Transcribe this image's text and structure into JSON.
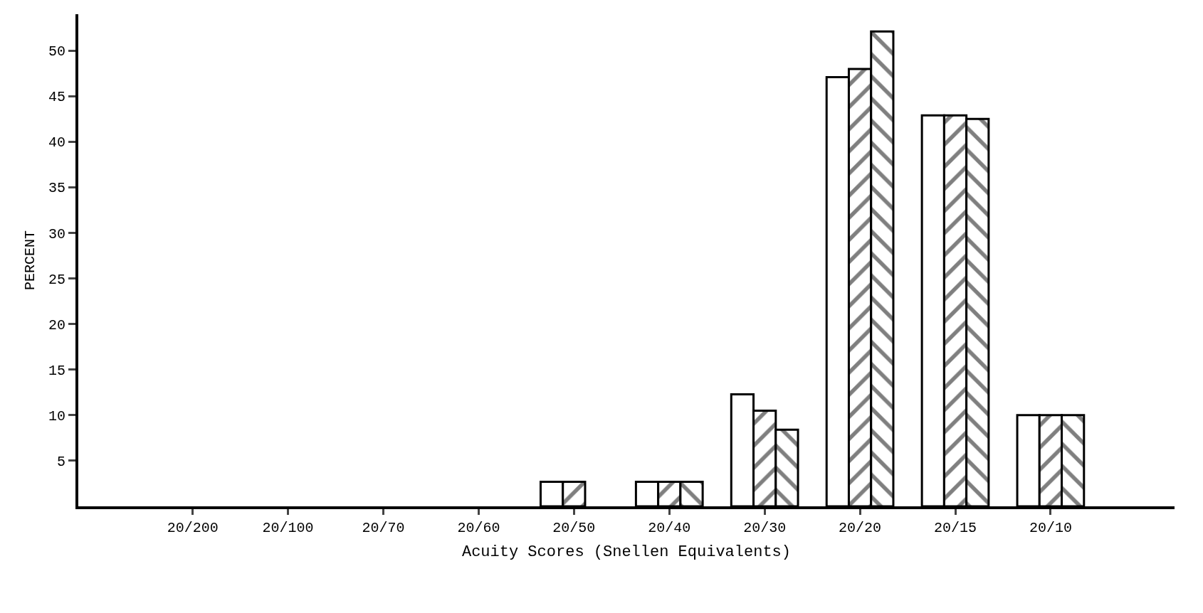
{
  "chart_data": {
    "type": "bar",
    "xlabel": "Acuity Scores (Snellen Equivalents)",
    "ylabel": "PERCENT",
    "categories": [
      "20/200",
      "20/100",
      "20/70",
      "20/60",
      "20/50",
      "20/40",
      "20/30",
      "20/20",
      "20/15",
      "20/10"
    ],
    "series": [
      {
        "color": "#ffffff",
        "values": [
          null,
          null,
          null,
          null,
          2.7,
          2.7,
          12.3,
          47.1,
          42.9,
          10
        ]
      },
      {
        "color": "#000000",
        "values": [
          null,
          null,
          null,
          null,
          2.7,
          2.7,
          10.5,
          48,
          42.9,
          10
        ]
      },
      {
        "color": "#000000",
        "values": [
          null,
          null,
          null,
          null,
          null,
          2.7,
          8.4,
          52.1,
          42.5,
          10
        ]
      }
    ],
    "ylim": [
      0,
      54
    ],
    "yticks": [
      5,
      10,
      15,
      20,
      25,
      30,
      35,
      40,
      45,
      50
    ],
    "legend": false
  }
}
